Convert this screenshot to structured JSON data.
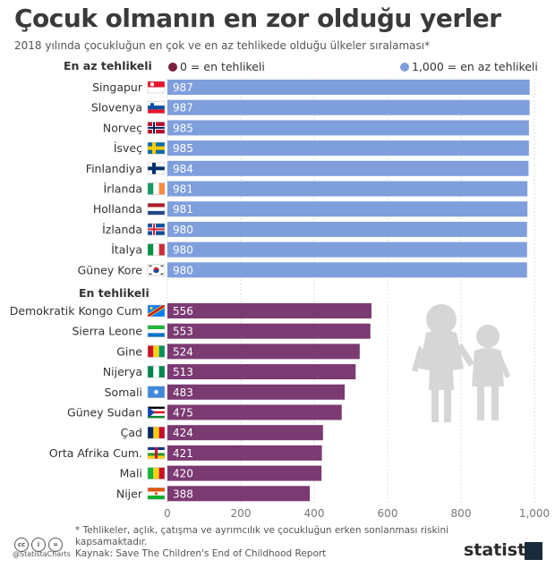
{
  "header": {
    "title": "Çocuk olmanın en zor olduğu yerler",
    "subtitle": "2018 yılında çocukluğun en çok ve en az tehlikede olduğu ülkeler sıralaması*"
  },
  "legend": {
    "low": "0 =  en tehlikeli",
    "high": "1,000 =  en az tehlikeli"
  },
  "footer": {
    "note": "* Tehlikeler, açlık, çatışma ve ayrımcılık ve çocukluğun erken sonlanması riskini kapsamaktadır.",
    "source": "Kaynak: Save The Children's End of Childhood Report",
    "handle": "@StatistaCharts",
    "logo": "statista"
  },
  "colors": {
    "safe": "#7f9edc",
    "danger": "#7b3a72"
  },
  "chart_data": {
    "type": "bar",
    "orientation": "horizontal",
    "xlim": [
      0,
      1000
    ],
    "xticks": [
      "0",
      "200",
      "400",
      "600",
      "800",
      "1,000"
    ],
    "tick_values": [
      0,
      200,
      400,
      600,
      800,
      1000
    ],
    "groups": [
      {
        "name": "En az tehlikeli",
        "color": "#7f9edc",
        "categories": [
          "Singapur",
          "Slovenya",
          "Norveç",
          "İsveç",
          "Finlandiya",
          "İrlanda",
          "Hollanda",
          "İzlanda",
          "İtalya",
          "Güney Kore"
        ],
        "flags": [
          "singapore-flag-icon",
          "slovenia-flag-icon",
          "norway-flag-icon",
          "sweden-flag-icon",
          "finland-flag-icon",
          "ireland-flag-icon",
          "netherlands-flag-icon",
          "iceland-flag-icon",
          "italy-flag-icon",
          "south-korea-flag-icon"
        ],
        "values": [
          987,
          987,
          985,
          985,
          984,
          981,
          981,
          980,
          980,
          980
        ]
      },
      {
        "name": "En tehlikeli",
        "color": "#7b3a72",
        "categories": [
          "Demokratik Kongo Cum",
          "Sierra Leone",
          "Gine",
          "Nijerya",
          "Somali",
          "Güney Sudan",
          "Çad",
          "Orta Afrika Cum.",
          "Mali",
          "Nijer"
        ],
        "flags": [
          "dr-congo-flag-icon",
          "sierra-leone-flag-icon",
          "guinea-flag-icon",
          "nigeria-flag-icon",
          "somalia-flag-icon",
          "south-sudan-flag-icon",
          "chad-flag-icon",
          "central-african-republic-flag-icon",
          "mali-flag-icon",
          "niger-flag-icon"
        ],
        "values": [
          556,
          553,
          524,
          513,
          483,
          475,
          424,
          421,
          420,
          388
        ]
      }
    ]
  }
}
